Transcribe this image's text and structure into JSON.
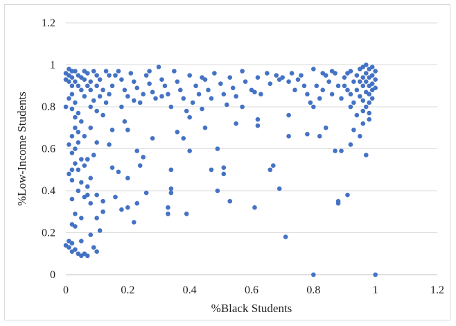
{
  "chart_data": {
    "type": "scatter",
    "title": "",
    "xlabel": "%Black Students",
    "ylabel": "%Low-Income Students",
    "xlim": [
      0,
      1.2
    ],
    "ylim": [
      0,
      1.2
    ],
    "xticks": [
      "0",
      "0.2",
      "0.4",
      "0.6",
      "0.8",
      "1",
      "1.2"
    ],
    "yticks": [
      "0",
      "0.2",
      "0.4",
      "0.6",
      "0.8",
      "1",
      "1.2"
    ],
    "grid": "horizontal",
    "legend": "none",
    "series": [
      {
        "color": "#4472c4",
        "points": [
          [
            0.0,
            0.14
          ],
          [
            0.01,
            0.13
          ],
          [
            0.02,
            0.15
          ],
          [
            0.01,
            0.16
          ],
          [
            0.03,
            0.12
          ],
          [
            0.02,
            0.11
          ],
          [
            0.04,
            0.1
          ],
          [
            0.05,
            0.09
          ],
          [
            0.07,
            0.09
          ],
          [
            0.06,
            0.1
          ],
          [
            0.05,
            0.16
          ],
          [
            0.08,
            0.19
          ],
          [
            0.1,
            0.11
          ],
          [
            0.09,
            0.13
          ],
          [
            0.11,
            0.21
          ],
          [
            0.02,
            0.24
          ],
          [
            0.03,
            0.23
          ],
          [
            0.05,
            0.27
          ],
          [
            0.1,
            0.27
          ],
          [
            0.12,
            0.3
          ],
          [
            0.03,
            0.29
          ],
          [
            0.02,
            0.36
          ],
          [
            0.04,
            0.4
          ],
          [
            0.06,
            0.37
          ],
          [
            0.07,
            0.38
          ],
          [
            0.08,
            0.34
          ],
          [
            0.1,
            0.38
          ],
          [
            0.12,
            0.35
          ],
          [
            0.02,
            0.45
          ],
          [
            0.05,
            0.44
          ],
          [
            0.07,
            0.42
          ],
          [
            0.01,
            0.48
          ],
          [
            0.02,
            0.5
          ],
          [
            0.04,
            0.5
          ],
          [
            0.06,
            0.52
          ],
          [
            0.08,
            0.46
          ],
          [
            0.03,
            0.53
          ],
          [
            0.05,
            0.55
          ],
          [
            0.02,
            0.58
          ],
          [
            0.03,
            0.6
          ],
          [
            0.04,
            0.63
          ],
          [
            0.01,
            0.62
          ],
          [
            0.07,
            0.55
          ],
          [
            0.09,
            0.57
          ],
          [
            0.1,
            0.63
          ],
          [
            0.02,
            0.66
          ],
          [
            0.04,
            0.68
          ],
          [
            0.06,
            0.66
          ],
          [
            0.08,
            0.7
          ],
          [
            0.03,
            0.7
          ],
          [
            0.15,
            0.51
          ],
          [
            0.17,
            0.49
          ],
          [
            0.16,
            0.37
          ],
          [
            0.18,
            0.31
          ],
          [
            0.2,
            0.32
          ],
          [
            0.2,
            0.46
          ],
          [
            0.22,
            0.25
          ],
          [
            0.23,
            0.34
          ],
          [
            0.24,
            0.52
          ],
          [
            0.25,
            0.56
          ],
          [
            0.23,
            0.59
          ],
          [
            0.26,
            0.39
          ],
          [
            0.28,
            0.65
          ],
          [
            0.14,
            0.62
          ],
          [
            0.15,
            0.69
          ],
          [
            0.19,
            0.73
          ],
          [
            0.2,
            0.69
          ],
          [
            0.33,
            0.29
          ],
          [
            0.33,
            0.32
          ],
          [
            0.34,
            0.39
          ],
          [
            0.34,
            0.41
          ],
          [
            0.34,
            0.5
          ],
          [
            0.36,
            0.68
          ],
          [
            0.38,
            0.65
          ],
          [
            0.39,
            0.29
          ],
          [
            0.4,
            0.59
          ],
          [
            0.4,
            0.75
          ],
          [
            0.45,
            0.7
          ],
          [
            0.47,
            0.5
          ],
          [
            0.49,
            0.4
          ],
          [
            0.49,
            0.6
          ],
          [
            0.51,
            0.51
          ],
          [
            0.51,
            0.48
          ],
          [
            0.53,
            0.35
          ],
          [
            0.55,
            0.72
          ],
          [
            0.61,
            0.32
          ],
          [
            0.62,
            0.71
          ],
          [
            0.62,
            0.74
          ],
          [
            0.66,
            0.5
          ],
          [
            0.67,
            0.52
          ],
          [
            0.69,
            0.41
          ],
          [
            0.71,
            0.18
          ],
          [
            0.72,
            0.66
          ],
          [
            0.72,
            0.76
          ],
          [
            0.78,
            0.67
          ],
          [
            0.8,
            0.0
          ],
          [
            0.82,
            0.66
          ],
          [
            0.84,
            0.7
          ],
          [
            0.87,
            0.59
          ],
          [
            0.88,
            0.35
          ],
          [
            0.88,
            0.34
          ],
          [
            0.89,
            0.59
          ],
          [
            0.91,
            0.38
          ],
          [
            0.92,
            0.62
          ],
          [
            0.93,
            0.69
          ],
          [
            0.95,
            0.66
          ],
          [
            0.96,
            0.72
          ],
          [
            0.97,
            0.57
          ],
          [
            0.98,
            0.74
          ],
          [
            1.0,
            0.0
          ],
          [
            0.0,
            0.96
          ],
          [
            0.01,
            0.95
          ],
          [
            0.02,
            0.94
          ],
          [
            0.01,
            0.92
          ],
          [
            0.02,
            0.9
          ],
          [
            0.0,
            0.93
          ],
          [
            0.03,
            0.97
          ],
          [
            0.01,
            0.98
          ],
          [
            0.02,
            0.97
          ],
          [
            0.04,
            0.95
          ],
          [
            0.03,
            0.92
          ],
          [
            0.05,
            0.94
          ],
          [
            0.04,
            0.9
          ],
          [
            0.06,
            0.93
          ],
          [
            0.05,
            0.88
          ],
          [
            0.02,
            0.86
          ],
          [
            0.01,
            0.84
          ],
          [
            0.03,
            0.82
          ],
          [
            0.0,
            0.8
          ],
          [
            0.02,
            0.79
          ],
          [
            0.04,
            0.77
          ],
          [
            0.03,
            0.75
          ],
          [
            0.05,
            0.73
          ],
          [
            0.06,
            0.85
          ],
          [
            0.07,
            0.9
          ],
          [
            0.08,
            0.92
          ],
          [
            0.07,
            0.96
          ],
          [
            0.09,
            0.97
          ],
          [
            0.1,
            0.95
          ],
          [
            0.11,
            0.93
          ],
          [
            0.1,
            0.9
          ],
          [
            0.12,
            0.88
          ],
          [
            0.11,
            0.85
          ],
          [
            0.09,
            0.83
          ],
          [
            0.08,
            0.8
          ],
          [
            0.1,
            0.78
          ],
          [
            0.12,
            0.76
          ],
          [
            0.13,
            0.82
          ],
          [
            0.14,
            0.86
          ],
          [
            0.15,
            0.9
          ],
          [
            0.16,
            0.95
          ],
          [
            0.17,
            0.97
          ],
          [
            0.18,
            0.93
          ],
          [
            0.19,
            0.88
          ],
          [
            0.2,
            0.85
          ],
          [
            0.21,
            0.96
          ],
          [
            0.22,
            0.92
          ],
          [
            0.23,
            0.89
          ],
          [
            0.24,
            0.82
          ],
          [
            0.25,
            0.86
          ],
          [
            0.26,
            0.95
          ],
          [
            0.27,
            0.91
          ],
          [
            0.28,
            0.87
          ],
          [
            0.29,
            0.84
          ],
          [
            0.3,
            0.99
          ],
          [
            0.31,
            0.93
          ],
          [
            0.32,
            0.9
          ],
          [
            0.33,
            0.86
          ],
          [
            0.34,
            0.8
          ],
          [
            0.35,
            0.97
          ],
          [
            0.36,
            0.92
          ],
          [
            0.37,
            0.88
          ],
          [
            0.38,
            0.84
          ],
          [
            0.39,
            0.78
          ],
          [
            0.4,
            0.95
          ],
          [
            0.42,
            0.9
          ],
          [
            0.43,
            0.86
          ],
          [
            0.44,
            0.79
          ],
          [
            0.45,
            0.93
          ],
          [
            0.46,
            0.88
          ],
          [
            0.47,
            0.84
          ],
          [
            0.48,
            0.96
          ],
          [
            0.5,
            0.91
          ],
          [
            0.51,
            0.86
          ],
          [
            0.52,
            0.81
          ],
          [
            0.53,
            0.94
          ],
          [
            0.54,
            0.89
          ],
          [
            0.55,
            0.85
          ],
          [
            0.57,
            0.8
          ],
          [
            0.58,
            0.92
          ],
          [
            0.6,
            0.88
          ],
          [
            0.62,
            0.94
          ],
          [
            0.63,
            0.86
          ],
          [
            0.65,
            0.96
          ],
          [
            0.66,
            0.91
          ],
          [
            0.68,
            0.95
          ],
          [
            0.7,
            0.94
          ],
          [
            0.72,
            0.92
          ],
          [
            0.73,
            0.96
          ],
          [
            0.75,
            0.93
          ],
          [
            0.77,
            0.9
          ],
          [
            0.78,
            0.86
          ],
          [
            0.79,
            0.82
          ],
          [
            0.8,
            0.98
          ],
          [
            0.8,
            0.8
          ],
          [
            0.81,
            0.9
          ],
          [
            0.82,
            0.84
          ],
          [
            0.83,
            0.88
          ],
          [
            0.84,
            0.95
          ],
          [
            0.85,
            0.92
          ],
          [
            0.86,
            0.86
          ],
          [
            0.87,
            0.96
          ],
          [
            0.88,
            0.9
          ],
          [
            0.89,
            0.84
          ],
          [
            0.9,
            0.94
          ],
          [
            0.91,
            0.88
          ],
          [
            0.92,
            0.97
          ],
          [
            0.93,
            0.92
          ],
          [
            0.93,
            0.82
          ],
          [
            0.94,
            0.95
          ],
          [
            0.94,
            0.88
          ],
          [
            0.95,
            0.98
          ],
          [
            0.95,
            0.92
          ],
          [
            0.95,
            0.85
          ],
          [
            0.96,
            0.99
          ],
          [
            0.96,
            0.94
          ],
          [
            0.96,
            0.9
          ],
          [
            0.96,
            0.83
          ],
          [
            0.97,
            1.0
          ],
          [
            0.97,
            0.96
          ],
          [
            0.97,
            0.92
          ],
          [
            0.97,
            0.87
          ],
          [
            0.97,
            0.8
          ],
          [
            0.98,
            0.98
          ],
          [
            0.98,
            0.94
          ],
          [
            0.98,
            0.9
          ],
          [
            0.98,
            0.86
          ],
          [
            0.98,
            0.82
          ],
          [
            0.99,
            0.99
          ],
          [
            0.99,
            0.95
          ],
          [
            0.99,
            0.91
          ],
          [
            0.99,
            0.88
          ],
          [
            0.99,
            0.84
          ],
          [
            1.0,
            0.97
          ],
          [
            1.0,
            0.93
          ],
          [
            1.0,
            0.89
          ],
          [
            0.96,
            0.78
          ],
          [
            0.94,
            0.76
          ],
          [
            0.92,
            0.8
          ],
          [
            0.98,
            0.77
          ],
          [
            0.14,
            0.95
          ],
          [
            0.13,
            0.97
          ],
          [
            0.06,
            0.97
          ],
          [
            0.08,
            0.88
          ],
          [
            0.18,
            0.8
          ],
          [
            0.22,
            0.83
          ],
          [
            0.27,
            0.97
          ],
          [
            0.31,
            0.85
          ],
          [
            0.41,
            0.82
          ],
          [
            0.44,
            0.94
          ],
          [
            0.57,
            0.97
          ],
          [
            0.61,
            0.87
          ],
          [
            0.69,
            0.93
          ],
          [
            0.74,
            0.88
          ],
          [
            0.76,
            0.95
          ],
          [
            0.83,
            0.96
          ],
          [
            0.86,
            0.97
          ],
          [
            0.9,
            0.9
          ],
          [
            0.91,
            0.96
          ],
          [
            0.92,
            0.86
          ]
        ]
      }
    ]
  }
}
